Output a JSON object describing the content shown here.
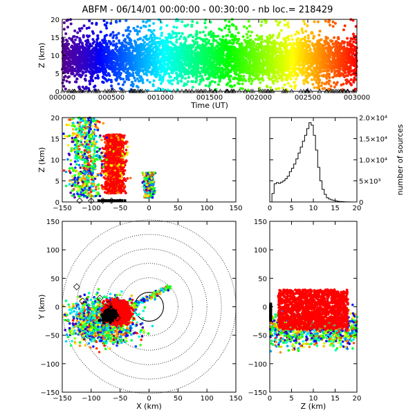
{
  "title": "ABFM - 06/14/01 00:00:00 - 00:30:00 - nb loc.= 218429",
  "colors": {
    "background": "#ffffff",
    "axis": "#000000",
    "dense_core": "#ff0000",
    "ground_marker": "#000000"
  },
  "chart_data": [
    {
      "id": "time_height",
      "type": "scatter",
      "description_none": "",
      "xlabel": "Time (UT)",
      "ylabel": "Z (km)",
      "xlim": [
        0,
        1800
      ],
      "ylim": [
        0,
        20
      ],
      "x_ticks": [
        0,
        300,
        600,
        900,
        1200,
        1500,
        1800
      ],
      "x_tick_labels": [
        "000000",
        "000500",
        "001000",
        "001500",
        "002000",
        "002500",
        "003000"
      ],
      "y_ticks": [
        0,
        5,
        10,
        15,
        20
      ],
      "y_tick_labels": [
        "0",
        "5",
        "10",
        "15",
        "20"
      ],
      "color_by": "time (rainbow: purple → red)",
      "points_z_range": [
        0,
        20
      ],
      "ground_marker": "triangle at Z=0"
    },
    {
      "id": "x_z",
      "type": "scatter",
      "xlabel": "",
      "ylabel": "Z (km)",
      "xlim": [
        -150,
        150
      ],
      "ylim": [
        0,
        20
      ],
      "x_ticks": [
        -150,
        -100,
        -50,
        0,
        50,
        100,
        150
      ],
      "x_tick_labels": [
        "−150",
        "−100",
        "−50",
        "0",
        "50",
        "100",
        "150"
      ],
      "y_ticks": [
        0,
        5,
        10,
        15,
        20
      ],
      "y_tick_labels": [
        "0",
        "5",
        "10",
        "15",
        "20"
      ],
      "clusters": [
        {
          "x_center": -60,
          "x_spread": 12,
          "z_min": 2,
          "z_max": 16,
          "dense": true
        },
        {
          "x_center": -110,
          "x_spread": 20,
          "z_min": 1,
          "z_max": 20,
          "dense": false
        },
        {
          "x_center": 0,
          "x_spread": 6,
          "z_min": 1,
          "z_max": 7,
          "dense": false
        }
      ],
      "diamond_markers_x": [
        -120,
        -100,
        -80,
        -65
      ],
      "station_row": "filled squares near Z=0 from X≈-90 to -40"
    },
    {
      "id": "altitude_histogram",
      "type": "bar",
      "xlabel": "",
      "ylabel": "number of sources",
      "xlim": [
        0,
        20
      ],
      "ylim": [
        0,
        20000
      ],
      "x_ticks": [
        0,
        5,
        10,
        15,
        20
      ],
      "x_tick_labels": [
        "0",
        "5",
        "10",
        "15",
        "20"
      ],
      "y_ticks": [
        0,
        5000,
        10000,
        15000,
        20000
      ],
      "y_tick_labels": [
        "0",
        "5×10³",
        "1.0×10⁴",
        "1.5×10⁴",
        "2.0×10⁴"
      ],
      "bin_width": 0.5,
      "bin_starts": [
        0,
        0.5,
        1,
        1.5,
        2,
        2.5,
        3,
        3.5,
        4,
        4.5,
        5,
        5.5,
        6,
        6.5,
        7,
        7.5,
        8,
        8.5,
        9,
        9.5,
        10,
        10.5,
        11,
        11.5,
        12,
        12.5,
        13,
        13.5,
        14,
        14.5,
        15,
        15.5,
        16,
        16.5,
        17,
        17.5,
        18,
        18.5,
        19,
        19.5
      ],
      "values": [
        0,
        2000,
        4300,
        4600,
        4400,
        4700,
        5000,
        5500,
        6100,
        7200,
        8000,
        9000,
        10200,
        11600,
        13000,
        14400,
        15800,
        17400,
        18800,
        18200,
        15800,
        12300,
        8200,
        5000,
        3000,
        1800,
        1000,
        700,
        500,
        350,
        250,
        150,
        100,
        80,
        50,
        30,
        20,
        10,
        5,
        0
      ]
    },
    {
      "id": "x_y",
      "type": "scatter",
      "xlabel": "X (km)",
      "ylabel": "Y (km)",
      "xlim": [
        -150,
        150
      ],
      "ylim": [
        -150,
        150
      ],
      "x_ticks": [
        -150,
        -100,
        -50,
        0,
        50,
        100,
        150
      ],
      "x_tick_labels": [
        "−150",
        "−100",
        "−50",
        "0",
        "50",
        "100",
        "150"
      ],
      "y_ticks": [
        -150,
        -100,
        -50,
        0,
        50,
        100,
        150
      ],
      "y_tick_labels": [
        "−150",
        "−100",
        "−50",
        "0",
        "50",
        "100",
        "150"
      ],
      "range_rings_km": [
        25,
        50,
        75,
        100,
        125,
        150
      ],
      "dense_core_center": [
        -55,
        -10
      ],
      "diamond_markers": [
        [
          -125,
          35
        ],
        [
          -115,
          10
        ],
        [
          -85,
          15
        ],
        [
          -70,
          5
        ],
        [
          -55,
          -20
        ]
      ]
    },
    {
      "id": "z_y",
      "type": "scatter",
      "xlabel": "Z (km)",
      "ylabel": "",
      "xlim": [
        0,
        20
      ],
      "ylim": [
        -150,
        150
      ],
      "x_ticks": [
        0,
        5,
        10,
        15,
        20
      ],
      "x_tick_labels": [
        "0",
        "5",
        "10",
        "15",
        "20"
      ],
      "y_ticks": [
        -150,
        -100,
        -50,
        0,
        50,
        100,
        150
      ],
      "y_tick_labels": [
        "−150",
        "−100",
        "−50",
        "0",
        "50",
        "100",
        "150"
      ],
      "dense_core": {
        "z_min": 2,
        "z_max": 18,
        "y_min": -40,
        "y_max": 30
      }
    }
  ]
}
